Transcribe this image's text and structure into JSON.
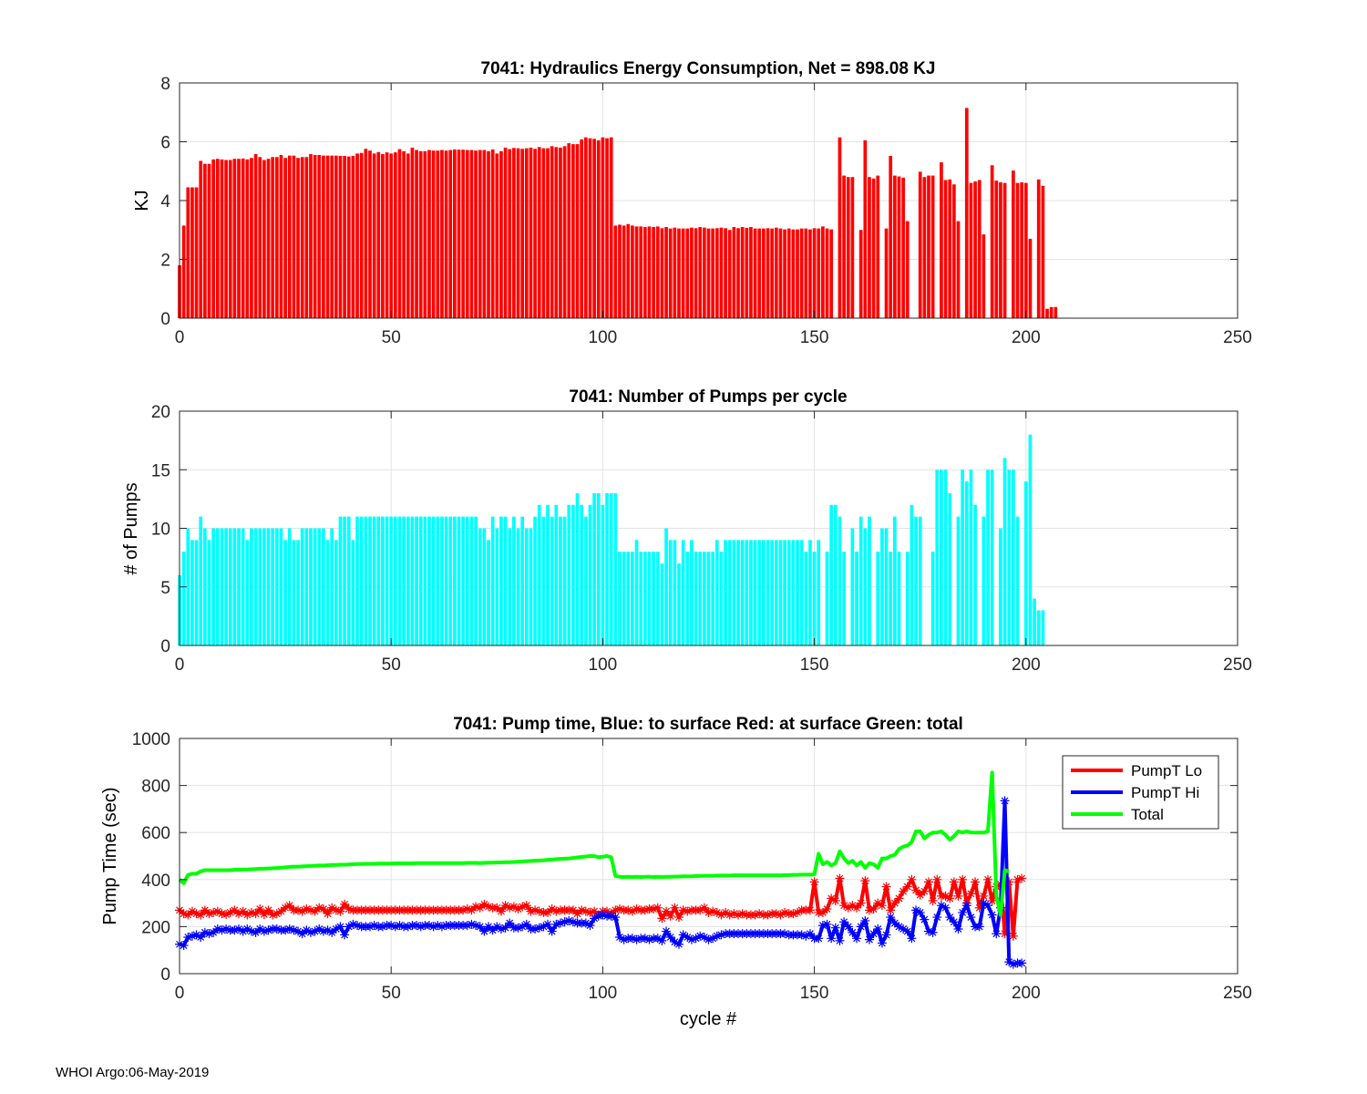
{
  "footer": "WHOI Argo:06-May-2019",
  "chart_data": [
    {
      "type": "bar",
      "title": "7041: Hydraulics Energy Consumption,  Net = 898.08 KJ",
      "xlabel": "",
      "ylabel": "KJ",
      "xlim": [
        0,
        250
      ],
      "ylim": [
        0,
        8
      ],
      "xticks": [
        0,
        50,
        100,
        150,
        200,
        250
      ],
      "yticks": [
        0,
        2,
        4,
        6,
        8
      ],
      "color": "#ff0000",
      "grid": true,
      "values": [
        1.8,
        3.15,
        4.45,
        4.45,
        4.45,
        5.35,
        5.25,
        5.25,
        5.4,
        5.42,
        5.4,
        5.38,
        5.38,
        5.42,
        5.42,
        5.43,
        5.4,
        5.45,
        5.58,
        5.48,
        5.38,
        5.42,
        5.48,
        5.48,
        5.55,
        5.45,
        5.53,
        5.53,
        5.45,
        5.48,
        5.48,
        5.58,
        5.55,
        5.55,
        5.53,
        5.53,
        5.53,
        5.53,
        5.52,
        5.52,
        5.5,
        5.52,
        5.6,
        5.62,
        5.76,
        5.7,
        5.6,
        5.65,
        5.58,
        5.64,
        5.6,
        5.64,
        5.75,
        5.68,
        5.6,
        5.8,
        5.72,
        5.68,
        5.68,
        5.72,
        5.7,
        5.7,
        5.72,
        5.7,
        5.72,
        5.74,
        5.73,
        5.73,
        5.72,
        5.72,
        5.7,
        5.72,
        5.72,
        5.68,
        5.74,
        5.6,
        5.68,
        5.8,
        5.75,
        5.79,
        5.78,
        5.76,
        5.78,
        5.8,
        5.76,
        5.82,
        5.78,
        5.78,
        5.85,
        5.82,
        5.8,
        5.85,
        5.95,
        5.92,
        5.92,
        6.08,
        6.15,
        6.12,
        6.1,
        6.05,
        6.15,
        6.12,
        6.15,
        3.15,
        3.18,
        3.15,
        3.2,
        3.15,
        3.12,
        3.12,
        3.1,
        3.12,
        3.1,
        3.12,
        3.06,
        3.1,
        3.05,
        3.08,
        3.05,
        3.05,
        3.05,
        3.08,
        3.06,
        3.1,
        3.08,
        3.05,
        3.05,
        3.06,
        3.08,
        3.06,
        3.0,
        3.1,
        3.06,
        3.1,
        3.07,
        3.1,
        3.05,
        3.05,
        3.05,
        3.06,
        3.05,
        3.08,
        3.05,
        3.02,
        3.05,
        3.02,
        3.02,
        3.05,
        3.05,
        3.02,
        3.06,
        3.05,
        3.12,
        3.05,
        3.02,
        0,
        6.15,
        4.85,
        4.8,
        4.8,
        0,
        3.0,
        6.05,
        4.8,
        4.75,
        4.85,
        0,
        3.05,
        5.52,
        4.85,
        4.82,
        4.78,
        3.3,
        0,
        0,
        4.98,
        4.8,
        4.85,
        4.85,
        0,
        5.3,
        4.7,
        4.72,
        4.55,
        3.3,
        0,
        7.15,
        4.6,
        4.65,
        4.7,
        2.85,
        0,
        5.2,
        4.68,
        4.62,
        4.6,
        0,
        5.02,
        4.6,
        4.62,
        4.6,
        2.7,
        0,
        4.72,
        4.5,
        0.32,
        0.38,
        0.38
      ]
    },
    {
      "type": "bar",
      "title": "7041: Number of Pumps per cycle",
      "xlabel": "",
      "ylabel": "# of Pumps",
      "xlim": [
        0,
        250
      ],
      "ylim": [
        0,
        20
      ],
      "xticks": [
        0,
        50,
        100,
        150,
        200,
        250
      ],
      "yticks": [
        0,
        5,
        10,
        15,
        20
      ],
      "color": "#00ffff",
      "grid": true,
      "values": [
        6,
        8,
        10,
        9,
        9,
        11,
        10,
        9,
        10,
        10,
        10,
        10,
        10,
        10,
        10,
        10,
        9,
        10,
        10,
        10,
        10,
        10,
        10,
        10,
        10,
        9,
        10,
        9,
        9,
        10,
        10,
        10,
        10,
        10,
        10,
        9,
        10,
        9,
        11,
        11,
        11,
        9,
        11,
        11,
        11,
        11,
        11,
        11,
        11,
        11,
        11,
        11,
        11,
        11,
        11,
        11,
        11,
        11,
        11,
        11,
        11,
        11,
        11,
        11,
        11,
        11,
        11,
        11,
        11,
        11,
        11,
        10,
        10,
        9,
        11,
        10,
        11,
        11,
        10,
        11,
        10,
        11,
        10,
        10,
        11,
        12,
        11,
        12,
        11,
        12,
        11,
        11,
        12,
        12,
        13,
        12,
        11,
        12,
        13,
        13,
        12,
        13,
        13,
        13,
        8,
        8,
        8,
        8,
        9,
        8,
        8,
        8,
        8,
        8,
        7,
        10,
        9,
        9,
        7,
        9,
        8,
        9,
        8,
        8,
        8,
        8,
        8,
        9,
        8,
        9,
        9,
        9,
        9,
        9,
        9,
        9,
        9,
        9,
        9,
        9,
        9,
        9,
        9,
        9,
        9,
        9,
        9,
        9,
        8,
        9,
        8,
        9,
        0,
        8,
        12,
        12,
        11,
        8,
        0,
        10,
        8,
        11,
        10,
        11,
        0,
        8,
        10,
        10,
        8,
        11,
        8,
        0,
        8,
        12,
        11,
        11,
        0,
        0,
        8,
        15,
        15,
        15,
        13,
        0,
        11,
        15,
        14,
        15,
        12,
        0,
        11,
        15,
        15,
        0,
        10,
        16,
        15,
        15,
        11,
        0,
        14,
        18,
        4,
        3,
        3
      ]
    },
    {
      "type": "line",
      "title": "7041: Pump time,  Blue: to surface   Red: at surface  Green: total",
      "xlabel": "cycle #",
      "ylabel": "Pump Time (sec)",
      "xlim": [
        0,
        250
      ],
      "ylim": [
        0,
        1000
      ],
      "xticks": [
        0,
        50,
        100,
        150,
        200,
        250
      ],
      "yticks": [
        0,
        200,
        400,
        600,
        800,
        1000
      ],
      "grid": true,
      "legend": {
        "position": "top-right",
        "entries": [
          "PumpT Lo",
          "PumpT Hi",
          "Total"
        ]
      },
      "series": [
        {
          "name": "PumpT Lo",
          "color": "#ff0000",
          "marker": "*",
          "values": [
            270,
            255,
            250,
            265,
            255,
            250,
            270,
            255,
            260,
            265,
            255,
            252,
            260,
            270,
            255,
            265,
            250,
            260,
            255,
            275,
            252,
            270,
            250,
            255,
            265,
            280,
            290,
            270,
            270,
            265,
            275,
            270,
            265,
            280,
            275,
            255,
            280,
            270,
            265,
            295,
            275,
            270,
            270,
            270,
            270,
            270,
            270,
            270,
            270,
            270,
            270,
            270,
            270,
            270,
            270,
            270,
            270,
            270,
            270,
            270,
            270,
            270,
            270,
            270,
            270,
            270,
            270,
            270,
            275,
            270,
            285,
            280,
            295,
            285,
            280,
            280,
            265,
            290,
            280,
            285,
            275,
            285,
            290,
            265,
            270,
            265,
            260,
            260,
            275,
            265,
            270,
            270,
            270,
            270,
            255,
            270,
            265,
            260,
            265,
            250,
            265,
            265,
            255,
            270,
            275,
            270,
            270,
            265,
            275,
            270,
            270,
            275,
            275,
            280,
            235,
            265,
            245,
            280,
            240,
            270,
            265,
            270,
            270,
            270,
            280,
            260,
            265,
            260,
            250,
            260,
            250,
            255,
            250,
            255,
            250,
            250,
            250,
            255,
            250,
            250,
            255,
            255,
            250,
            260,
            255,
            255,
            260,
            270,
            270,
            270,
            390,
            260,
            260,
            275,
            320,
            310,
            405,
            290,
            280,
            290,
            280,
            300,
            395,
            270,
            275,
            300,
            290,
            370,
            270,
            300,
            320,
            350,
            370,
            400,
            355,
            335,
            350,
            390,
            310,
            400,
            330,
            330,
            320,
            390,
            330,
            400,
            300,
            340,
            390,
            280,
            330,
            400,
            310,
            370,
            380,
            170,
            390,
            160,
            400,
            405
          ]
        },
        {
          "name": "PumpT Hi",
          "color": "#0000ff",
          "marker": "*",
          "values": [
            125,
            120,
            155,
            160,
            165,
            155,
            175,
            170,
            175,
            190,
            185,
            190,
            185,
            185,
            190,
            180,
            190,
            180,
            175,
            190,
            180,
            185,
            190,
            190,
            185,
            185,
            190,
            185,
            180,
            170,
            185,
            175,
            180,
            190,
            180,
            185,
            175,
            190,
            200,
            165,
            200,
            210,
            205,
            200,
            200,
            200,
            205,
            200,
            200,
            205,
            205,
            200,
            205,
            200,
            200,
            205,
            205,
            200,
            205,
            205,
            200,
            205,
            200,
            205,
            205,
            205,
            205,
            205,
            205,
            210,
            205,
            200,
            180,
            200,
            185,
            200,
            190,
            195,
            215,
            195,
            195,
            200,
            210,
            190,
            190,
            195,
            200,
            210,
            180,
            210,
            215,
            220,
            225,
            220,
            215,
            215,
            215,
            205,
            235,
            245,
            250,
            245,
            245,
            240,
            155,
            145,
            150,
            150,
            145,
            150,
            150,
            145,
            150,
            150,
            140,
            180,
            155,
            135,
            125,
            165,
            155,
            145,
            150,
            160,
            155,
            145,
            150,
            160,
            165,
            170,
            170,
            170,
            170,
            170,
            170,
            170,
            170,
            170,
            170,
            170,
            170,
            170,
            170,
            170,
            165,
            165,
            165,
            165,
            160,
            170,
            150,
            150,
            205,
            210,
            150,
            195,
            140,
            220,
            200,
            175,
            150,
            200,
            225,
            145,
            170,
            190,
            130,
            165,
            240,
            215,
            200,
            190,
            180,
            150,
            270,
            260,
            230,
            180,
            175,
            240,
            290,
            280,
            240,
            220,
            190,
            260,
            290,
            240,
            200,
            200,
            300,
            290,
            250,
            170,
            280,
            735,
            50,
            40,
            45,
            45
          ]
        },
        {
          "name": "Total",
          "color": "#00ff00",
          "marker": "none",
          "values": [
            400,
            385,
            420,
            425,
            425,
            435,
            440,
            440,
            440,
            440,
            440,
            440,
            440,
            442,
            442,
            443,
            443,
            444,
            445,
            446,
            446,
            447,
            448,
            449,
            450,
            452,
            454,
            455,
            455,
            456,
            457,
            458,
            459,
            460,
            460,
            461,
            462,
            462,
            463,
            463,
            464,
            465,
            466,
            466,
            467,
            467,
            467,
            468,
            468,
            468,
            468,
            469,
            469,
            469,
            469,
            469,
            470,
            470,
            470,
            470,
            470,
            470,
            470,
            470,
            470,
            470,
            470,
            470,
            471,
            471,
            471,
            470,
            471,
            472,
            472,
            473,
            473,
            474,
            474,
            475,
            476,
            477,
            478,
            479,
            480,
            481,
            482,
            484,
            485,
            487,
            488,
            489,
            490,
            492,
            494,
            496,
            498,
            500,
            500,
            495,
            497,
            500,
            495,
            415,
            412,
            411,
            412,
            411,
            412,
            411,
            412,
            412,
            411,
            412,
            411,
            412,
            412,
            413,
            413,
            414,
            414,
            414,
            415,
            415,
            416,
            416,
            416,
            417,
            417,
            417,
            417,
            418,
            418,
            418,
            418,
            418,
            418,
            418,
            418,
            418,
            418,
            418,
            418,
            419,
            419,
            420,
            420,
            421,
            421,
            421,
            422,
            510,
            465,
            475,
            460,
            470,
            520,
            490,
            470,
            480,
            460,
            475,
            450,
            470,
            465,
            450,
            490,
            490,
            500,
            505,
            530,
            540,
            545,
            560,
            605,
            605,
            575,
            590,
            600,
            600,
            605,
            590,
            570,
            585,
            605,
            600,
            605,
            600,
            600,
            600,
            600,
            605,
            855,
            330,
            250,
            440,
            435
          ]
        }
      ]
    }
  ]
}
